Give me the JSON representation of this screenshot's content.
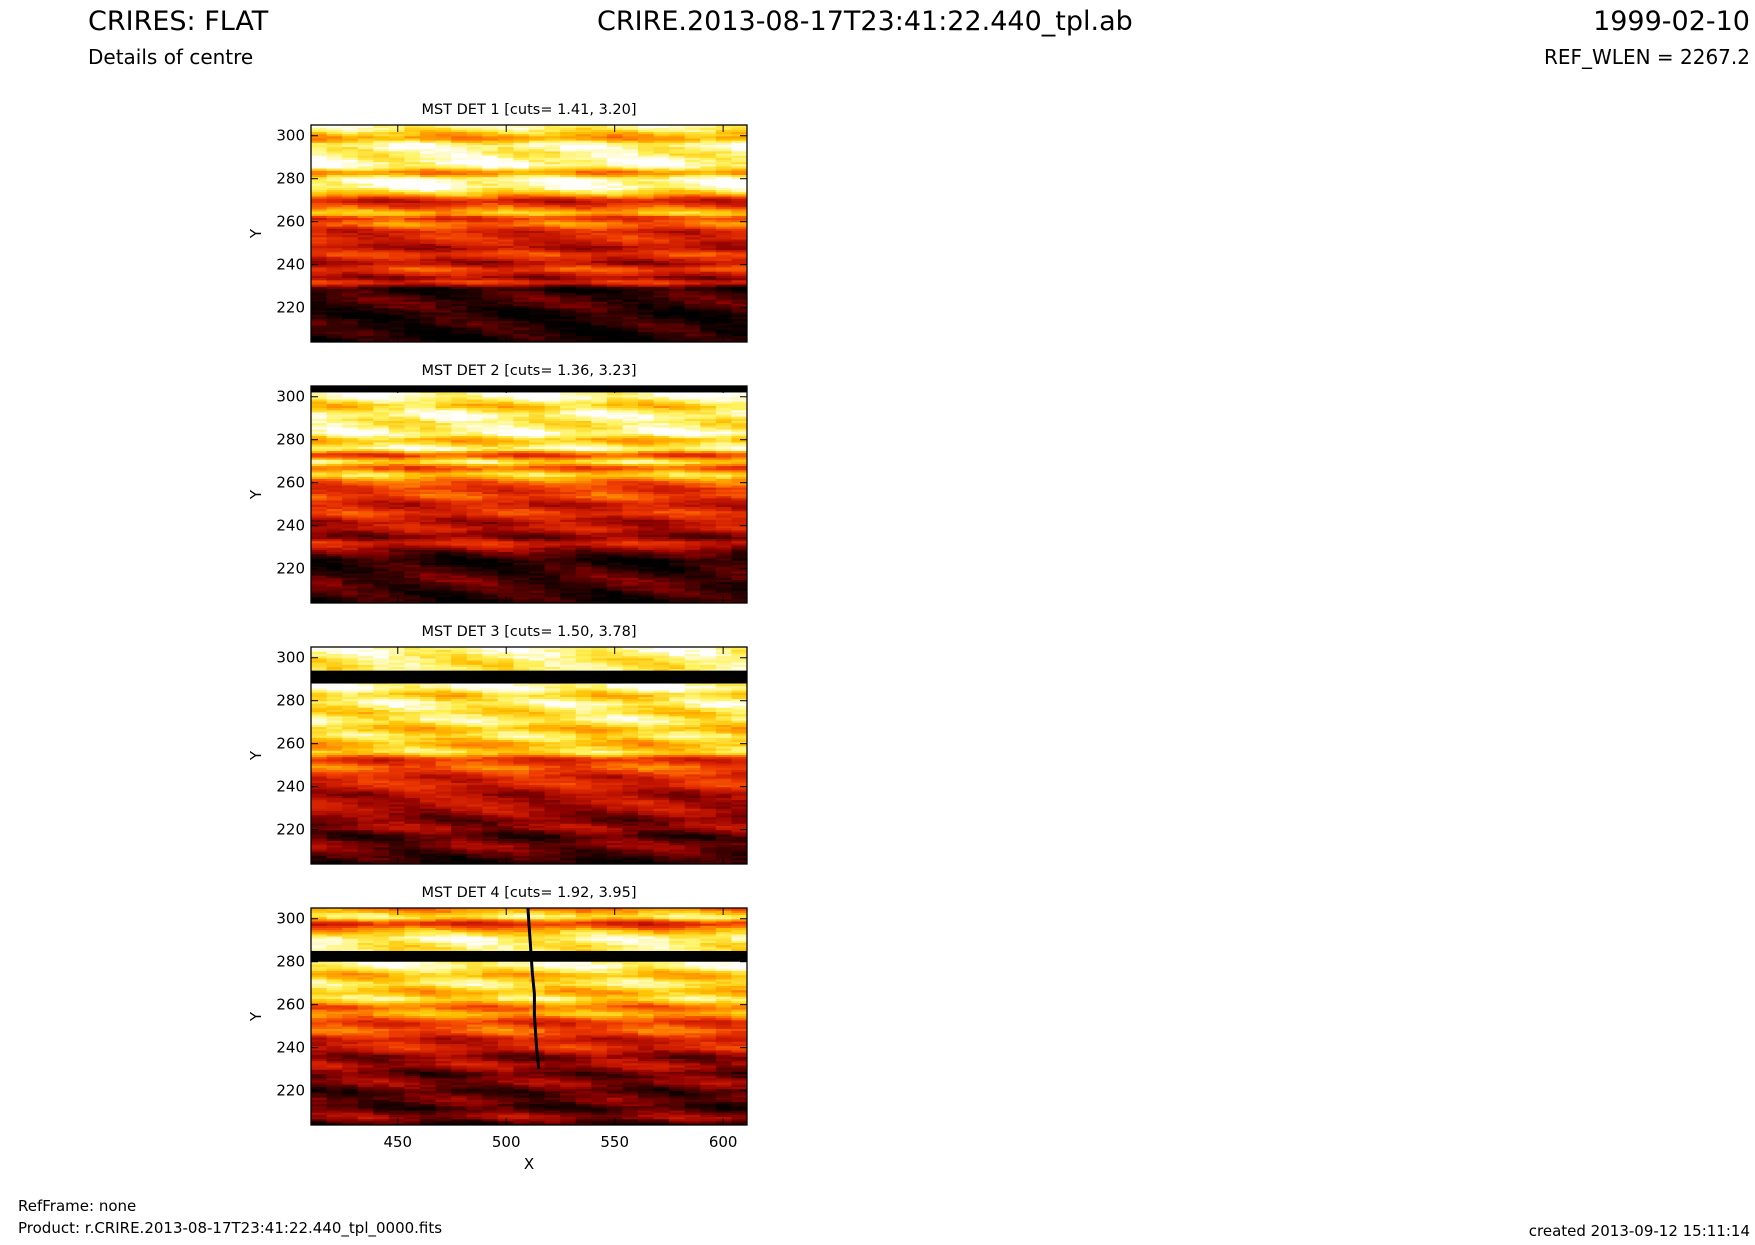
{
  "header": {
    "title_left": "CRIRES: FLAT",
    "subtitle_left": "Details of centre",
    "title_center": "CRIRE.2013-08-17T23:41:22.440_tpl.ab",
    "title_right": "1999-02-10",
    "subtitle_right": "REF_WLEN = 2267.2"
  },
  "footer": {
    "refframe": "RefFrame: none",
    "product": "Product: r.CRIRE.2013-08-17T23:41:22.440_tpl_0000.fits",
    "created": "created 2013-09-12 15:11:14"
  },
  "colormap": [
    "#000000",
    "#3a0000",
    "#8b0000",
    "#c81800",
    "#ee3a00",
    "#ff7d00",
    "#ffc000",
    "#fff25a",
    "#ffffff"
  ],
  "chart_data": [
    {
      "type": "heatmap",
      "title": "MST DET 1 [cuts= 1.41, 3.20]",
      "xlabel": "",
      "ylabel": "Y",
      "xlim": [
        410,
        611
      ],
      "ylim": [
        204,
        305
      ],
      "xticks": [],
      "yticks": [
        220,
        240,
        260,
        280,
        300
      ],
      "profile": [
        {
          "y": 204,
          "v": 0.03
        },
        {
          "y": 213,
          "v": 0.1
        },
        {
          "y": 217,
          "v": 0.05
        },
        {
          "y": 222,
          "v": 0.14
        },
        {
          "y": 226,
          "v": 0.12
        },
        {
          "y": 229,
          "v": 0.04
        },
        {
          "y": 232,
          "v": 0.5
        },
        {
          "y": 234,
          "v": 0.25
        },
        {
          "y": 238,
          "v": 0.55
        },
        {
          "y": 241,
          "v": 0.28
        },
        {
          "y": 245,
          "v": 0.52
        },
        {
          "y": 248,
          "v": 0.3
        },
        {
          "y": 252,
          "v": 0.45
        },
        {
          "y": 256,
          "v": 0.4
        },
        {
          "y": 259,
          "v": 0.65
        },
        {
          "y": 262,
          "v": 0.45
        },
        {
          "y": 264,
          "v": 0.8
        },
        {
          "y": 267,
          "v": 0.55
        },
        {
          "y": 270,
          "v": 0.35
        },
        {
          "y": 273,
          "v": 0.75
        },
        {
          "y": 276,
          "v": 0.95
        },
        {
          "y": 280,
          "v": 0.97
        },
        {
          "y": 283,
          "v": 0.6
        },
        {
          "y": 286,
          "v": 0.95
        },
        {
          "y": 289,
          "v": 0.95
        },
        {
          "y": 292,
          "v": 0.88
        },
        {
          "y": 296,
          "v": 0.96
        },
        {
          "y": 299,
          "v": 0.65
        },
        {
          "y": 305,
          "v": 0.95
        }
      ],
      "blocks": []
    },
    {
      "type": "heatmap",
      "title": "MST DET 2 [cuts= 1.36, 3.23]",
      "xlabel": "",
      "ylabel": "Y",
      "xlim": [
        410,
        611
      ],
      "ylim": [
        204,
        305
      ],
      "xticks": [],
      "yticks": [
        220,
        240,
        260,
        280,
        300
      ],
      "profile": [
        {
          "y": 204,
          "v": 0.05
        },
        {
          "y": 210,
          "v": 0.12
        },
        {
          "y": 215,
          "v": 0.18
        },
        {
          "y": 220,
          "v": 0.1
        },
        {
          "y": 224,
          "v": 0.04
        },
        {
          "y": 228,
          "v": 0.2
        },
        {
          "y": 232,
          "v": 0.45
        },
        {
          "y": 235,
          "v": 0.2
        },
        {
          "y": 239,
          "v": 0.4
        },
        {
          "y": 242,
          "v": 0.3
        },
        {
          "y": 246,
          "v": 0.5
        },
        {
          "y": 250,
          "v": 0.35
        },
        {
          "y": 254,
          "v": 0.55
        },
        {
          "y": 257,
          "v": 0.45
        },
        {
          "y": 261,
          "v": 0.6
        },
        {
          "y": 264,
          "v": 0.85
        },
        {
          "y": 267,
          "v": 0.5
        },
        {
          "y": 270,
          "v": 0.9
        },
        {
          "y": 273,
          "v": 0.45
        },
        {
          "y": 276,
          "v": 0.97
        },
        {
          "y": 280,
          "v": 0.7
        },
        {
          "y": 283,
          "v": 0.96
        },
        {
          "y": 288,
          "v": 0.85
        },
        {
          "y": 292,
          "v": 0.96
        },
        {
          "y": 296,
          "v": 0.75
        },
        {
          "y": 300,
          "v": 0.97
        },
        {
          "y": 305,
          "v": 0.97
        }
      ],
      "blocks": [
        {
          "y0": 302,
          "y1": 305,
          "v": 0.0
        }
      ]
    },
    {
      "type": "heatmap",
      "title": "MST DET 3 [cuts= 1.50, 3.78]",
      "xlabel": "",
      "ylabel": "Y",
      "xlim": [
        410,
        611
      ],
      "ylim": [
        204,
        305
      ],
      "xticks": [],
      "yticks": [
        220,
        240,
        260,
        280,
        300
      ],
      "profile": [
        {
          "y": 204,
          "v": 0.04
        },
        {
          "y": 209,
          "v": 0.15
        },
        {
          "y": 213,
          "v": 0.25
        },
        {
          "y": 217,
          "v": 0.12
        },
        {
          "y": 221,
          "v": 0.3
        },
        {
          "y": 225,
          "v": 0.2
        },
        {
          "y": 229,
          "v": 0.32
        },
        {
          "y": 233,
          "v": 0.35
        },
        {
          "y": 237,
          "v": 0.3
        },
        {
          "y": 241,
          "v": 0.45
        },
        {
          "y": 245,
          "v": 0.4
        },
        {
          "y": 249,
          "v": 0.6
        },
        {
          "y": 253,
          "v": 0.42
        },
        {
          "y": 256,
          "v": 0.85
        },
        {
          "y": 260,
          "v": 0.7
        },
        {
          "y": 264,
          "v": 0.88
        },
        {
          "y": 267,
          "v": 0.72
        },
        {
          "y": 271,
          "v": 0.92
        },
        {
          "y": 275,
          "v": 0.8
        },
        {
          "y": 279,
          "v": 0.94
        },
        {
          "y": 283,
          "v": 0.75
        },
        {
          "y": 286,
          "v": 0.97
        },
        {
          "y": 298,
          "v": 0.85
        },
        {
          "y": 305,
          "v": 0.95
        }
      ],
      "blocks": [
        {
          "y0": 288,
          "y1": 294,
          "v": 0.0
        }
      ]
    },
    {
      "type": "heatmap",
      "title": "MST DET 4 [cuts= 1.92, 3.95]",
      "xlabel": "X",
      "ylabel": "Y",
      "xlim": [
        410,
        611
      ],
      "ylim": [
        204,
        305
      ],
      "xticks": [
        450,
        500,
        550,
        600
      ],
      "yticks": [
        220,
        240,
        260,
        280,
        300
      ],
      "profile": [
        {
          "y": 204,
          "v": 0.05
        },
        {
          "y": 208,
          "v": 0.3
        },
        {
          "y": 212,
          "v": 0.1
        },
        {
          "y": 216,
          "v": 0.22
        },
        {
          "y": 220,
          "v": 0.12
        },
        {
          "y": 224,
          "v": 0.28
        },
        {
          "y": 228,
          "v": 0.15
        },
        {
          "y": 232,
          "v": 0.35
        },
        {
          "y": 236,
          "v": 0.22
        },
        {
          "y": 240,
          "v": 0.45
        },
        {
          "y": 244,
          "v": 0.35
        },
        {
          "y": 248,
          "v": 0.6
        },
        {
          "y": 252,
          "v": 0.45
        },
        {
          "y": 256,
          "v": 0.75
        },
        {
          "y": 259,
          "v": 0.55
        },
        {
          "y": 263,
          "v": 0.88
        },
        {
          "y": 266,
          "v": 0.7
        },
        {
          "y": 270,
          "v": 0.9
        },
        {
          "y": 274,
          "v": 0.72
        },
        {
          "y": 278,
          "v": 0.95
        },
        {
          "y": 287,
          "v": 0.85
        },
        {
          "y": 291,
          "v": 0.95
        },
        {
          "y": 295,
          "v": 0.7
        },
        {
          "y": 298,
          "v": 0.4
        },
        {
          "y": 301,
          "v": 0.9
        },
        {
          "y": 305,
          "v": 0.6
        }
      ],
      "blocks": [
        {
          "y0": 280,
          "y1": 285,
          "v": 0.0
        }
      ],
      "column_defect": [
        {
          "x": 510,
          "y": 305
        },
        {
          "x": 511,
          "y": 290
        },
        {
          "x": 512,
          "y": 275
        },
        {
          "x": 513,
          "y": 265
        },
        {
          "x": 513,
          "y": 255
        },
        {
          "x": 514,
          "y": 240
        },
        {
          "x": 515,
          "y": 230
        }
      ]
    }
  ]
}
